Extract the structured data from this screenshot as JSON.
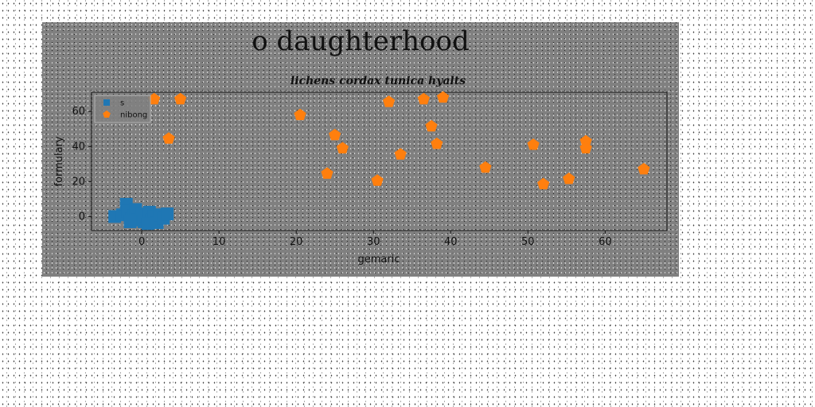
{
  "chart_data": {
    "type": "scatter",
    "title": "o daughterhood",
    "subtitle": "lichens cordax tunica hyalts",
    "xlabel": "gemaric",
    "ylabel": "formulary",
    "xlim": [
      -6.5,
      68
    ],
    "ylim": [
      -8,
      71
    ],
    "xticks": [
      0,
      10,
      20,
      30,
      40,
      50,
      60
    ],
    "yticks": [
      0,
      20,
      40,
      60
    ],
    "grid": false,
    "legend_position": "top-left",
    "series": [
      {
        "name": "s",
        "marker": "square",
        "color": "#1f77b4",
        "points": [
          [
            -3.5,
            0
          ],
          [
            -2.5,
            1
          ],
          [
            -2,
            7
          ],
          [
            -1.8,
            3
          ],
          [
            -1.3,
            -1.5
          ],
          [
            -1,
            0.5
          ],
          [
            -0.8,
            4
          ],
          [
            -0.5,
            -2
          ],
          [
            0,
            1.5
          ],
          [
            0.3,
            -3
          ],
          [
            0.6,
            0.5
          ],
          [
            1,
            2.5
          ],
          [
            1.3,
            -2
          ],
          [
            1.6,
            0
          ],
          [
            2,
            -3.5
          ],
          [
            2.3,
            1
          ],
          [
            2.8,
            -1
          ],
          [
            3.3,
            1.5
          ],
          [
            -1.5,
            -3
          ],
          [
            0.8,
            -4
          ]
        ]
      },
      {
        "name": "nibong",
        "marker": "pentagon",
        "color": "#ff7f0e",
        "points": [
          [
            1.6,
            67
          ],
          [
            3.5,
            44.5
          ],
          [
            5,
            67
          ],
          [
            20.5,
            58
          ],
          [
            24,
            24.5
          ],
          [
            25,
            46.5
          ],
          [
            26,
            39
          ],
          [
            30.5,
            20.5
          ],
          [
            32,
            65.5
          ],
          [
            33.5,
            35.5
          ],
          [
            36.5,
            67
          ],
          [
            37.5,
            51.5
          ],
          [
            38.2,
            41.5
          ],
          [
            39,
            68
          ],
          [
            44.5,
            28
          ],
          [
            50.7,
            41
          ],
          [
            52,
            18.5
          ],
          [
            55.3,
            21.5
          ],
          [
            57.5,
            43
          ],
          [
            57.5,
            39
          ],
          [
            65,
            27
          ]
        ]
      }
    ]
  }
}
